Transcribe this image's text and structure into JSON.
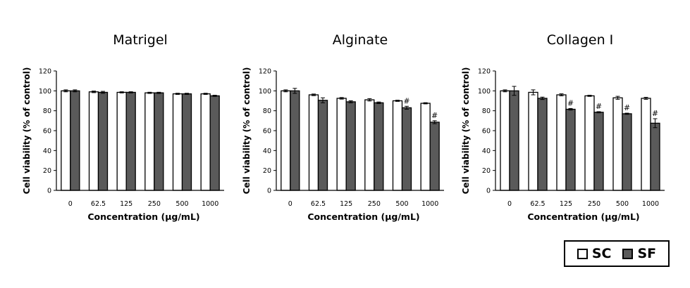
{
  "legend": {
    "sc_label": "SC",
    "sf_label": "SF",
    "sc_color": "#ffffff",
    "sf_color": "#5a5a5a"
  },
  "chart_data": [
    {
      "type": "bar",
      "title": "Matrigel",
      "xlabel": "Concentration (μg/mL)",
      "ylabel": "Cell viability (% of control)",
      "ylim": [
        0,
        120
      ],
      "yticks": [
        0,
        20,
        40,
        60,
        80,
        100,
        120
      ],
      "categories": [
        "0",
        "62.5",
        "125",
        "250",
        "500",
        "1000"
      ],
      "series": [
        {
          "name": "SC",
          "values": [
            100,
            99,
            98.5,
            98,
            97,
            97
          ],
          "errors": [
            1,
            0.8,
            0.6,
            0.6,
            0.6,
            0.6
          ]
        },
        {
          "name": "SF",
          "values": [
            100,
            98.5,
            98.5,
            98,
            97,
            95
          ],
          "errors": [
            1,
            1,
            0.6,
            0.6,
            0.6,
            0.6
          ]
        }
      ],
      "annotations": [
        null,
        null,
        null,
        null,
        null,
        null
      ]
    },
    {
      "type": "bar",
      "title": "Alginate",
      "xlabel": "Concentration (μg/mL)",
      "ylabel": "Cell viability (% of control)",
      "ylim": [
        0,
        120
      ],
      "yticks": [
        0,
        20,
        40,
        60,
        80,
        100,
        120
      ],
      "categories": [
        "0",
        "62.5",
        "125",
        "250",
        "500",
        "1000"
      ],
      "series": [
        {
          "name": "SC",
          "values": [
            100,
            96,
            92.5,
            91,
            90,
            87.5
          ],
          "errors": [
            1,
            0.8,
            0.8,
            1.2,
            0.6,
            0.6
          ]
        },
        {
          "name": "SF",
          "values": [
            100,
            90.5,
            89,
            88,
            83,
            68.5
          ],
          "errors": [
            2.5,
            2.5,
            1,
            0.8,
            1.5,
            1.5
          ]
        }
      ],
      "annotations": [
        null,
        null,
        null,
        null,
        "#",
        "#"
      ]
    },
    {
      "type": "bar",
      "title": "Collagen I",
      "xlabel": "Concentration (μg/mL)",
      "ylabel": "Cell viability (% of control)",
      "ylim": [
        0,
        120
      ],
      "yticks": [
        0,
        20,
        40,
        60,
        80,
        100,
        120
      ],
      "categories": [
        "0",
        "62.5",
        "125",
        "250",
        "500",
        "1000"
      ],
      "series": [
        {
          "name": "SC",
          "values": [
            100,
            98.5,
            96,
            95,
            93,
            92.5
          ],
          "errors": [
            1,
            2.5,
            1,
            0.6,
            1.5,
            1
          ]
        },
        {
          "name": "SF",
          "values": [
            100,
            92.5,
            81.5,
            78.5,
            77,
            67.5
          ],
          "errors": [
            4.5,
            1.2,
            0.8,
            0.6,
            0.6,
            4.5
          ]
        }
      ],
      "annotations": [
        null,
        null,
        "#",
        "#",
        "#",
        "#"
      ]
    }
  ]
}
